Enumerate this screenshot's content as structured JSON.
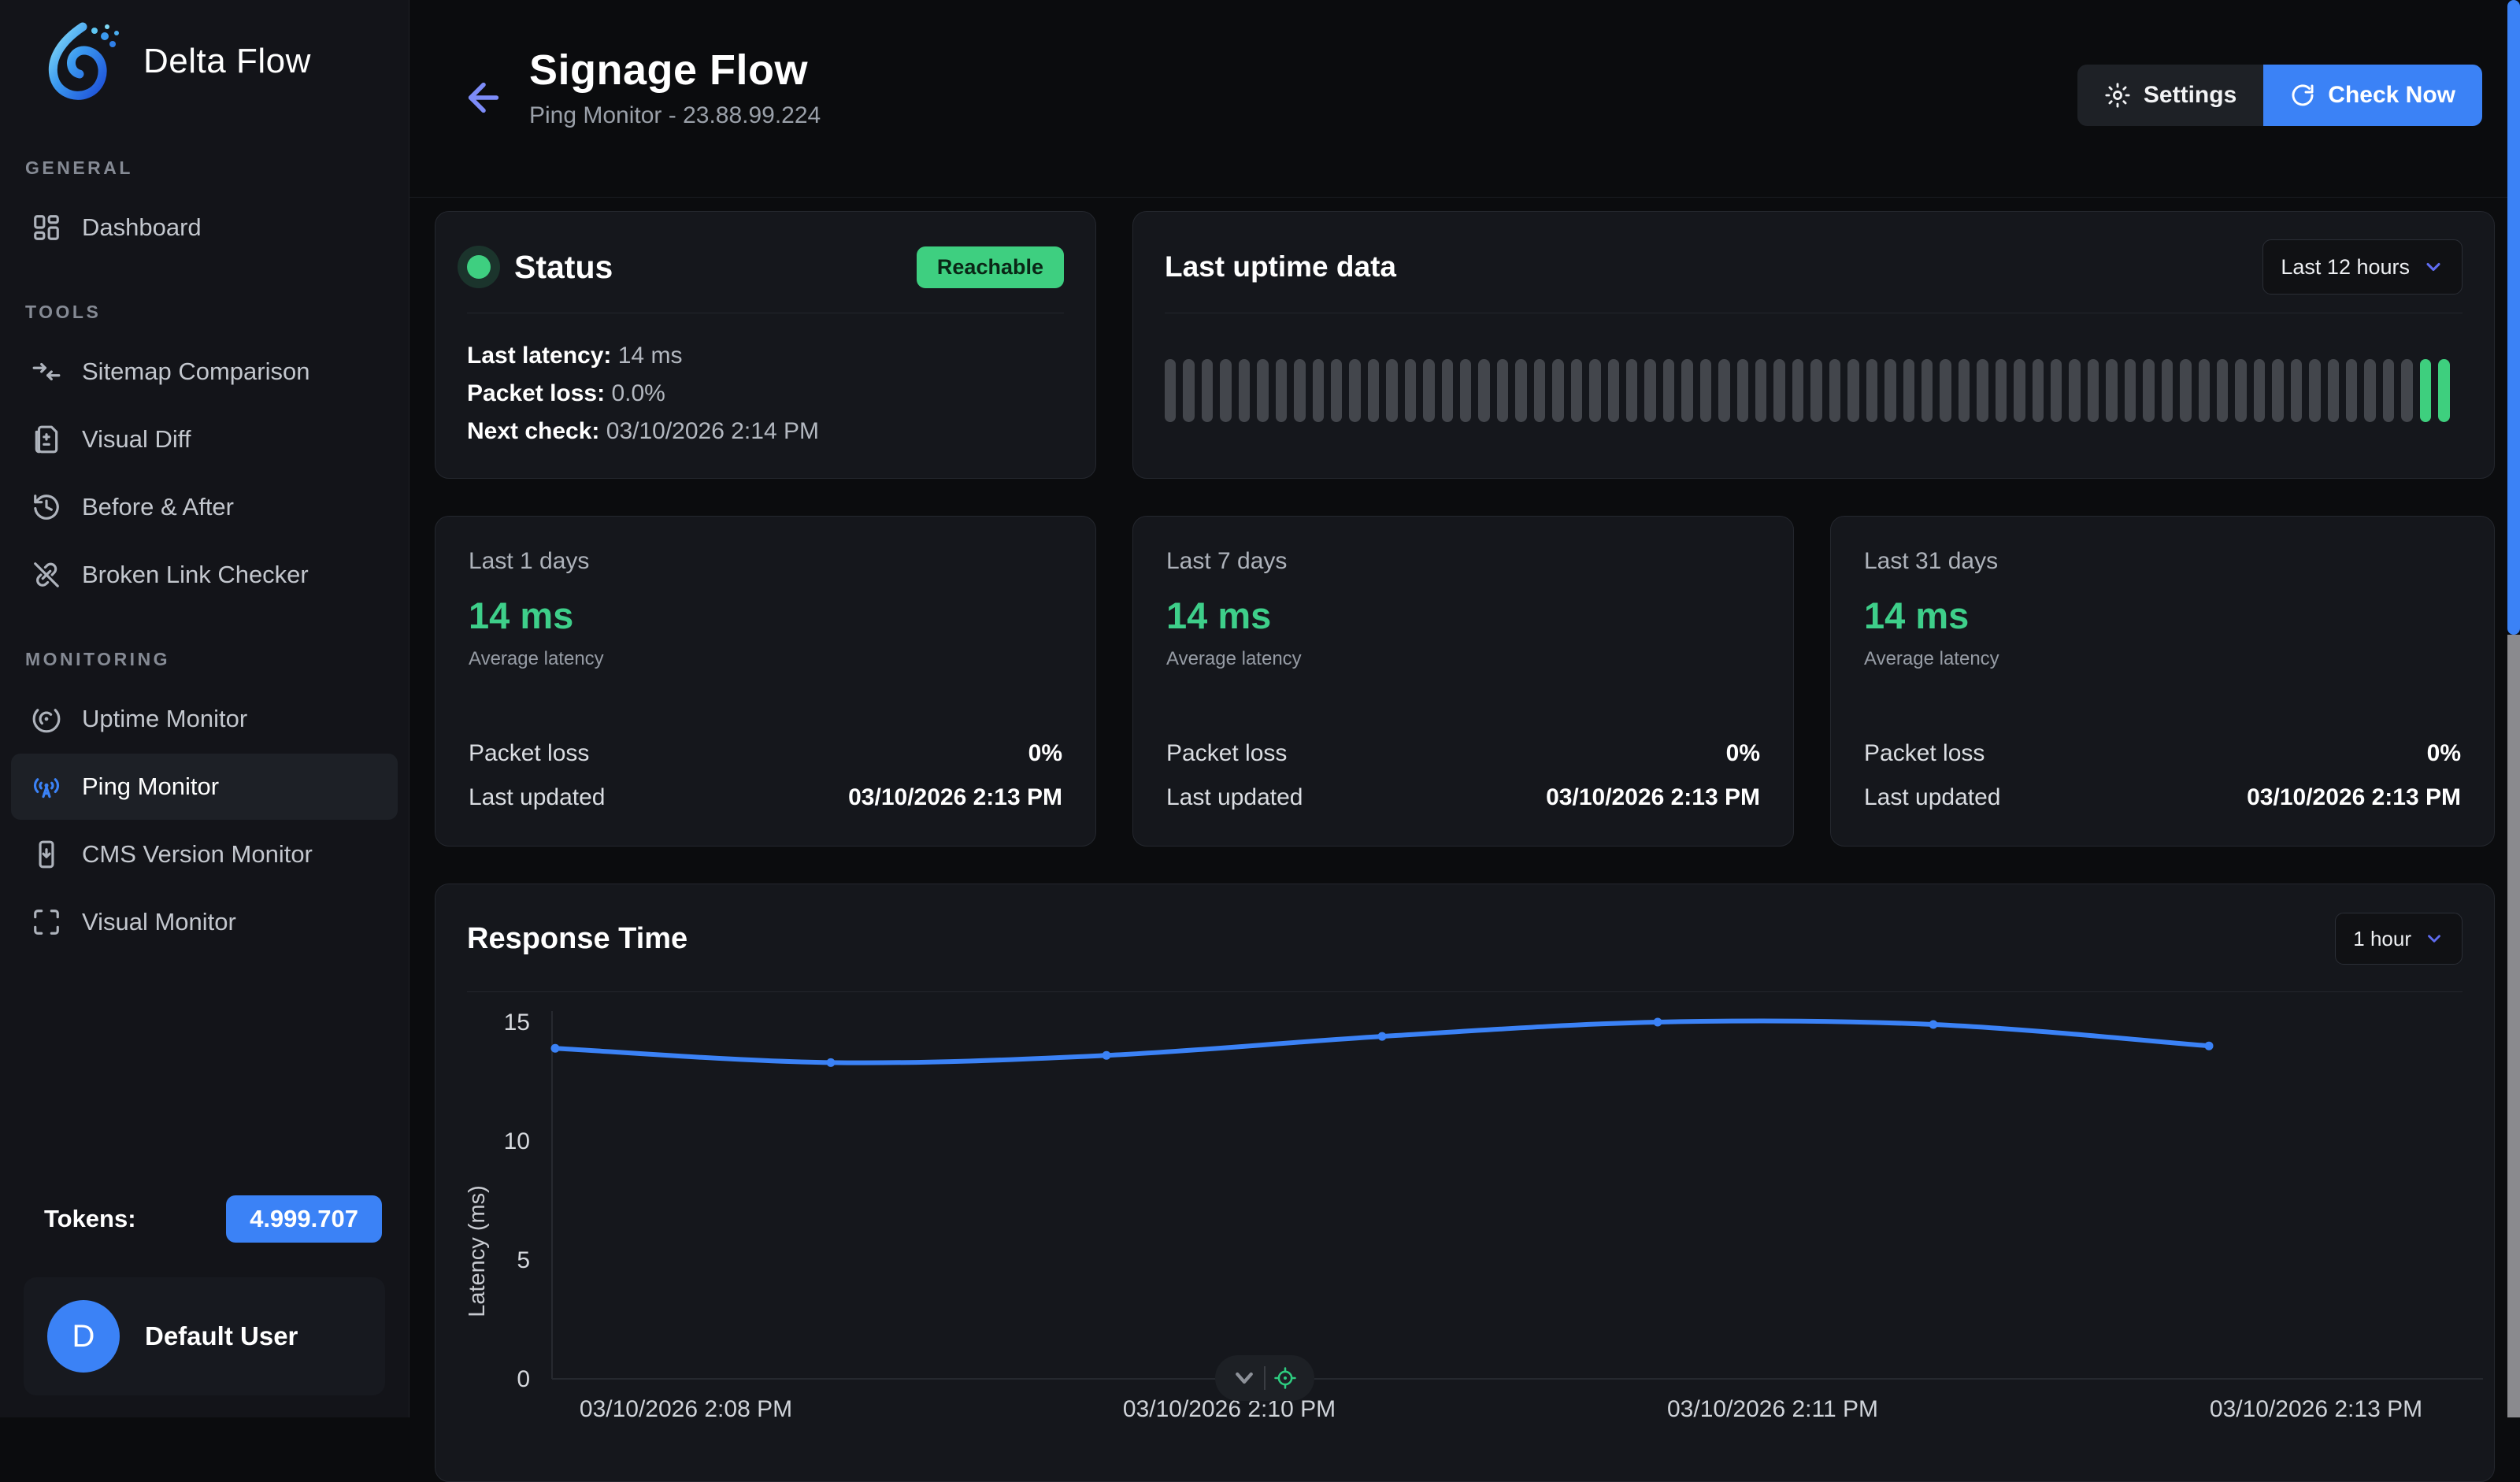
{
  "brand": {
    "name": "Delta Flow"
  },
  "sidebar": {
    "sections": [
      {
        "title": "GENERAL",
        "items": [
          {
            "label": "Dashboard",
            "icon": "dashboard-icon",
            "active": false
          }
        ]
      },
      {
        "title": "TOOLS",
        "items": [
          {
            "label": "Sitemap Comparison",
            "icon": "merge-arrows-icon",
            "active": false
          },
          {
            "label": "Visual Diff",
            "icon": "file-diff-icon",
            "active": false
          },
          {
            "label": "Before & After",
            "icon": "history-icon",
            "active": false
          },
          {
            "label": "Broken Link Checker",
            "icon": "broken-link-icon",
            "active": false
          }
        ]
      },
      {
        "title": "MONITORING",
        "items": [
          {
            "label": "Uptime Monitor",
            "icon": "radar-icon",
            "active": false
          },
          {
            "label": "Ping Monitor",
            "icon": "antenna-icon",
            "active": true
          },
          {
            "label": "CMS Version Monitor",
            "icon": "phone-download-icon",
            "active": false
          },
          {
            "label": "Visual Monitor",
            "icon": "scan-icon",
            "active": false
          }
        ]
      }
    ],
    "tokens_label": "Tokens:",
    "tokens_value": "4.999.707",
    "user_initial": "D",
    "user_name": "Default User"
  },
  "header": {
    "title": "Signage Flow",
    "subtitle": "Ping Monitor - 23.88.99.224",
    "settings_label": "Settings",
    "check_now_label": "Check Now"
  },
  "status_card": {
    "title": "Status",
    "badge": "Reachable",
    "rows": [
      {
        "label": "Last latency:",
        "value": "14 ms"
      },
      {
        "label": "Packet loss:",
        "value": "0.0%"
      },
      {
        "label": "Next check:",
        "value": "03/10/2026 2:14 PM"
      }
    ]
  },
  "uptime_card": {
    "title": "Last uptime data",
    "range": "Last 12 hours",
    "bars": {
      "total": 70,
      "recent_up": 2,
      "bar_color": "#43464c",
      "up_color": "#3ecf7e"
    }
  },
  "stat_cards": [
    {
      "period": "Last 1 days",
      "latency": "14 ms",
      "caption": "Average latency",
      "packet_loss_label": "Packet loss",
      "packet_loss": "0%",
      "updated_label": "Last updated",
      "updated": "03/10/2026 2:13 PM"
    },
    {
      "period": "Last 7 days",
      "latency": "14 ms",
      "caption": "Average latency",
      "packet_loss_label": "Packet loss",
      "packet_loss": "0%",
      "updated_label": "Last updated",
      "updated": "03/10/2026 2:13 PM"
    },
    {
      "period": "Last 31 days",
      "latency": "14 ms",
      "caption": "Average latency",
      "packet_loss_label": "Packet loss",
      "packet_loss": "0%",
      "updated_label": "Last updated",
      "updated": "03/10/2026 2:13 PM"
    }
  ],
  "response_card": {
    "title": "Response Time",
    "range": "1 hour"
  },
  "chart_data": {
    "type": "line",
    "title": "Response Time",
    "ylabel": "Latency (ms)",
    "yticks": [
      0,
      5,
      10,
      15
    ],
    "ylim": [
      0,
      16.5
    ],
    "x_tick_labels": [
      "03/10/2026 2:08 PM",
      "03/10/2026 2:10 PM",
      "03/10/2026 2:11 PM",
      "03/10/2026 2:13 PM"
    ],
    "points": [
      {
        "t": "2:08 PM",
        "y": 13.9
      },
      {
        "t": "2:08:40 PM",
        "y": 13.3
      },
      {
        "t": "2:09:20 PM",
        "y": 13.6
      },
      {
        "t": "2:10 PM",
        "y": 14.4
      },
      {
        "t": "2:10:40 PM",
        "y": 15.0
      },
      {
        "t": "2:11:20 PM",
        "y": 14.9
      },
      {
        "t": "2:12 PM",
        "y": 14.0
      }
    ],
    "line_color": "#3b82f6",
    "grid": false,
    "legend": false
  },
  "colors": {
    "accent_blue": "#3b82f6",
    "accent_green": "#3ecf80",
    "accent_indigo": "#6d7ef6",
    "card_bg": "#15171c",
    "sidebar_bg": "#131419"
  }
}
